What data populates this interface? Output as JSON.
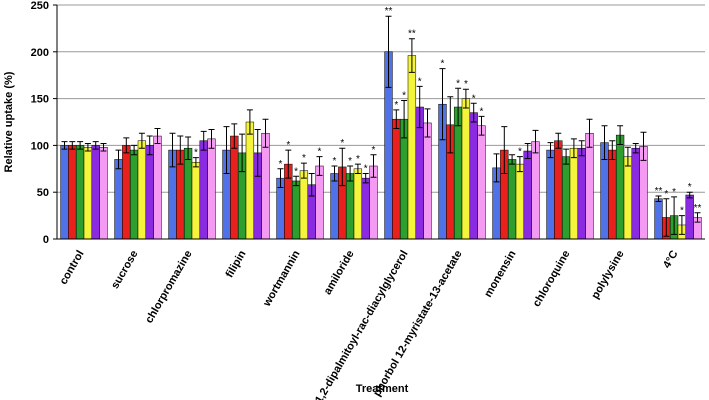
{
  "chart_data": {
    "type": "bar",
    "y_label": "Relative uptake (%)",
    "x_label": "Treatment",
    "categories": [
      "control",
      "sucrose",
      "chlorpromazine",
      "filipin",
      "wortmannin",
      "amiloride",
      "1,2-dipalmitoyl-rac-diacylglycerol",
      "phorbol 12-myristate-13-acetate",
      "monensin",
      "chloroquine",
      "polylysine",
      "4°C"
    ],
    "ylim": [
      0,
      250
    ],
    "yticks": [
      0,
      50,
      100,
      150,
      200,
      250
    ],
    "grid": true,
    "series": [
      {
        "color": "#4f72e8",
        "values": [
          100,
          85,
          95,
          95,
          65,
          70,
          200,
          144,
          76,
          95,
          103,
          43
        ],
        "errors": [
          4,
          10,
          18,
          25,
          10,
          8,
          38,
          38,
          15,
          8,
          18,
          3
        ],
        "significance": [
          null,
          null,
          null,
          null,
          "*",
          "*",
          "**",
          "*",
          null,
          null,
          null,
          "**"
        ]
      },
      {
        "color": "#e8201e",
        "values": [
          100,
          100,
          95,
          110,
          80,
          77,
          128,
          122,
          95,
          105,
          95,
          23
        ],
        "errors": [
          4,
          8,
          15,
          13,
          15,
          20,
          10,
          30,
          25,
          8,
          10,
          20
        ],
        "significance": [
          null,
          null,
          null,
          null,
          "*",
          "*",
          "*",
          null,
          null,
          null,
          null,
          "*"
        ]
      },
      {
        "color": "#2e9e2e",
        "values": [
          100,
          95,
          97,
          92,
          62,
          70,
          128,
          141,
          85,
          88,
          111,
          25
        ],
        "errors": [
          4,
          5,
          12,
          20,
          5,
          8,
          20,
          20,
          5,
          8,
          10,
          20
        ],
        "significance": [
          null,
          null,
          null,
          null,
          "*",
          "*",
          "*",
          "*",
          null,
          null,
          null,
          "*"
        ]
      },
      {
        "color": "#f4f43a",
        "values": [
          98,
          105,
          82,
          125,
          73,
          75,
          196,
          150,
          80,
          97,
          88,
          15
        ],
        "errors": [
          4,
          8,
          5,
          13,
          8,
          5,
          18,
          10,
          8,
          10,
          10,
          10
        ],
        "significance": [
          null,
          null,
          "*",
          null,
          "*",
          "*",
          "**",
          "*",
          "*",
          null,
          null,
          "*"
        ]
      },
      {
        "color": "#8a2be2",
        "values": [
          100,
          100,
          105,
          92,
          58,
          65,
          141,
          135,
          94,
          97,
          97,
          47
        ],
        "errors": [
          4,
          10,
          10,
          25,
          12,
          5,
          22,
          10,
          8,
          8,
          5,
          3
        ],
        "significance": [
          null,
          null,
          null,
          null,
          null,
          "*",
          "*",
          "*",
          null,
          null,
          null,
          "*"
        ]
      },
      {
        "color": "#f59af2",
        "values": [
          98,
          110,
          107,
          113,
          78,
          78,
          124,
          121,
          104,
          113,
          99,
          23
        ],
        "errors": [
          4,
          8,
          10,
          15,
          10,
          12,
          15,
          10,
          12,
          15,
          15,
          5
        ],
        "significance": [
          null,
          null,
          null,
          null,
          "*",
          "*",
          null,
          "*",
          null,
          null,
          null,
          "**"
        ]
      }
    ]
  }
}
